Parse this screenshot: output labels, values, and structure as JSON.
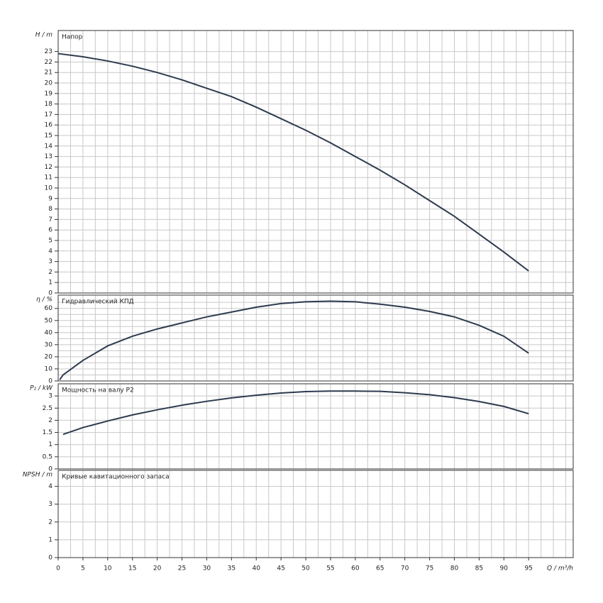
{
  "chart_data": [
    {
      "type": "line",
      "title": "Напор",
      "ylabel": "H / m",
      "x": [
        0,
        5,
        10,
        15,
        20,
        25,
        30,
        35,
        40,
        45,
        50,
        55,
        60,
        65,
        70,
        75,
        80,
        85,
        90,
        95
      ],
      "series": [
        {
          "color": "#2e3a4e",
          "values": [
            22.8,
            22.5,
            22.1,
            21.6,
            21.0,
            20.3,
            19.5,
            18.7,
            17.7,
            16.6,
            15.5,
            14.3,
            13.0,
            11.7,
            10.3,
            8.8,
            7.3,
            5.6,
            3.9,
            2.1
          ]
        }
      ],
      "xlim": [
        0,
        104
      ],
      "xticks": [
        0,
        5,
        10,
        15,
        20,
        25,
        30,
        35,
        40,
        45,
        50,
        55,
        60,
        65,
        70,
        75,
        80,
        85,
        90,
        95
      ],
      "ylim": [
        0,
        25
      ],
      "yticks": [
        0,
        1,
        2,
        3,
        4,
        5,
        6,
        7,
        8,
        9,
        10,
        11,
        12,
        13,
        14,
        15,
        16,
        17,
        18,
        19,
        20,
        21,
        22,
        23
      ],
      "grid": true
    },
    {
      "type": "line",
      "title": "Гидравлический КПД",
      "ylabel": "η / %",
      "x": [
        0.3,
        1,
        5,
        10,
        15,
        20,
        25,
        30,
        35,
        40,
        45,
        50,
        55,
        60,
        65,
        70,
        75,
        80,
        85,
        90,
        95
      ],
      "series": [
        {
          "color": "#2e3a4e",
          "values": [
            1,
            5,
            17,
            29,
            37,
            43,
            48,
            53,
            57,
            61,
            64,
            65.5,
            66,
            65.5,
            63.5,
            61,
            57.5,
            53,
            46,
            37,
            23
          ]
        }
      ],
      "xlim": [
        0,
        104
      ],
      "xticks": [
        0,
        5,
        10,
        15,
        20,
        25,
        30,
        35,
        40,
        45,
        50,
        55,
        60,
        65,
        70,
        75,
        80,
        85,
        90,
        95
      ],
      "ylim": [
        0,
        71
      ],
      "yticks": [
        0,
        10,
        20,
        30,
        40,
        50,
        60
      ],
      "grid": true
    },
    {
      "type": "line",
      "title": "Мощность на валу P2",
      "ylabel": "P₂ / kW",
      "x": [
        1,
        5,
        10,
        15,
        20,
        25,
        30,
        35,
        40,
        45,
        50,
        55,
        60,
        65,
        70,
        75,
        80,
        85,
        90,
        95
      ],
      "series": [
        {
          "color": "#2e3a4e",
          "values": [
            1.42,
            1.7,
            1.97,
            2.22,
            2.43,
            2.62,
            2.78,
            2.92,
            3.03,
            3.12,
            3.18,
            3.2,
            3.2,
            3.19,
            3.13,
            3.05,
            2.93,
            2.77,
            2.57,
            2.27
          ]
        }
      ],
      "xlim": [
        0,
        104
      ],
      "xticks": [
        0,
        5,
        10,
        15,
        20,
        25,
        30,
        35,
        40,
        45,
        50,
        55,
        60,
        65,
        70,
        75,
        80,
        85,
        90,
        95
      ],
      "ylim": [
        0,
        3.5
      ],
      "yticks": [
        0,
        0.5,
        1,
        1.5,
        2,
        2.5,
        3
      ],
      "grid": true
    },
    {
      "type": "line",
      "title": "Кривые кавитационного запаса",
      "ylabel": "NPSH / m",
      "xlabel": "Q / m³/h",
      "xlim": [
        0,
        104
      ],
      "xticks": [
        0,
        5,
        10,
        15,
        20,
        25,
        30,
        35,
        40,
        45,
        50,
        55,
        60,
        65,
        70,
        75,
        80,
        85,
        90,
        95
      ],
      "ylim": [
        0,
        4.9
      ],
      "yticks": [
        0,
        1,
        2,
        3,
        4
      ],
      "grid": true
    }
  ]
}
